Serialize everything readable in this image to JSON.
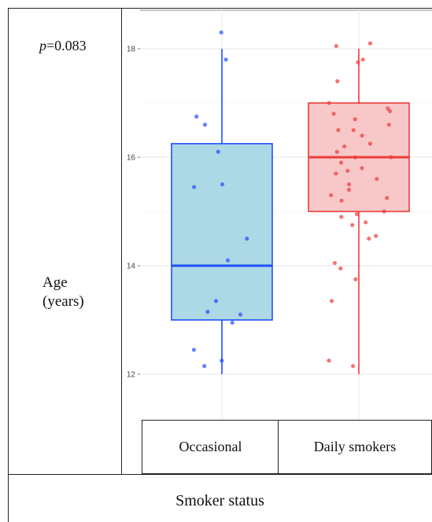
{
  "annotation": {
    "p_label": "p",
    "p_value": "=0.083"
  },
  "axis": {
    "ylabel_line1": "Age",
    "ylabel_line2": "(years)",
    "xlabel": "Smoker status"
  },
  "chart_data": {
    "type": "box",
    "ylim": [
      11.2,
      18.7
    ],
    "yticks": [
      12,
      14,
      16,
      18
    ],
    "grid": true,
    "categories": [
      "Occasional",
      "Daily smokers"
    ],
    "series": [
      {
        "category": "Occasional",
        "color": "#1f4fff",
        "fill": "#add8e6",
        "box": {
          "min": 12,
          "q1": 13,
          "median": 14,
          "q3": 16.25,
          "max": 18
        },
        "points": [
          18.3,
          17.8,
          16.75,
          16.6,
          16.1,
          15.5,
          15.45,
          14.5,
          14.1,
          13.35,
          13.15,
          13.1,
          12.95,
          12.45,
          12.25,
          12.15
        ]
      },
      {
        "category": "Daily smokers",
        "color": "#ee3b3b",
        "fill": "#f8c8c8",
        "box": {
          "min": 12,
          "q1": 15,
          "median": 16,
          "q3": 17,
          "max": 18
        },
        "points": [
          18.1,
          18.05,
          17.8,
          17.75,
          17.4,
          17.0,
          16.9,
          16.85,
          16.8,
          16.7,
          16.6,
          16.5,
          16.5,
          16.4,
          16.25,
          16.2,
          16.1,
          16.0,
          16.0,
          15.9,
          15.8,
          15.75,
          15.7,
          15.6,
          15.5,
          15.4,
          15.3,
          15.25,
          15.2,
          15.0,
          14.95,
          14.9,
          14.8,
          14.75,
          14.55,
          14.5,
          14.05,
          13.95,
          13.75,
          13.35,
          12.25,
          12.15
        ]
      }
    ]
  }
}
